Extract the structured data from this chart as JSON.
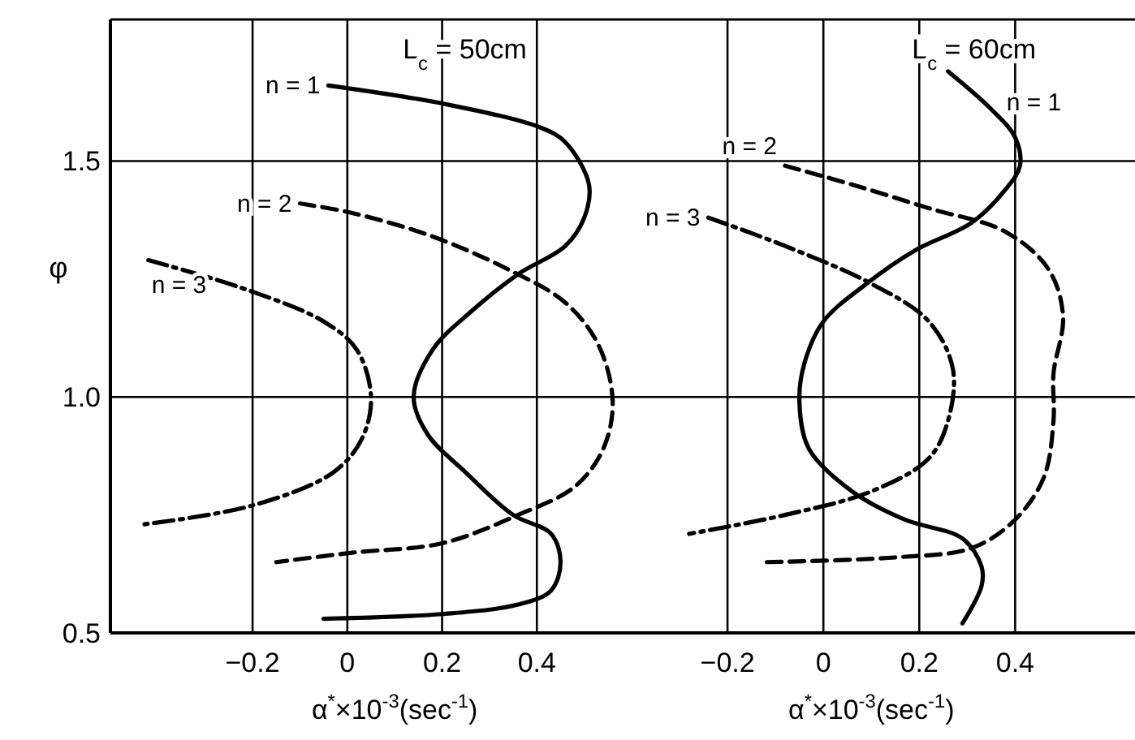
{
  "chart_data": [
    {
      "type": "line",
      "xlabel": "α$^{*}$×10$^{-3}$(sec$^{-1}$)",
      "ylabel": "φ",
      "annotations": [
        "L$_{c}$ = 50cm"
      ],
      "xlim": [
        -0.5,
        0.6
      ],
      "ylim": [
        0.5,
        1.8
      ],
      "xticks": [
        -0.2,
        0,
        0.2,
        0.4
      ],
      "yticks": [
        0.5,
        {
          "value": 1,
          "label": "1.0"
        },
        1.5
      ],
      "grid": true,
      "legend": false,
      "series": [
        {
          "name": "n = 1",
          "color": "#000000",
          "line_style": "solid",
          "x": [
            -0.04,
            0.21,
            0.41,
            0.46,
            0.51,
            0.5,
            0.46,
            0.36,
            0.26,
            0.18,
            0.14,
            0.17,
            0.25,
            0.35,
            0.43,
            0.45,
            0.43,
            0.36,
            0.2,
            -0.05
          ],
          "values": [
            1.66,
            1.62,
            1.57,
            1.54,
            1.45,
            1.38,
            1.32,
            1.26,
            1.18,
            1.1,
            1.0,
            0.92,
            0.84,
            0.75,
            0.71,
            0.65,
            0.59,
            0.56,
            0.54,
            0.53
          ]
        },
        {
          "name": "n = 2",
          "color": "#000000",
          "line_style": "dashed",
          "x": [
            -0.1,
            0.01,
            0.18,
            0.34,
            0.46,
            0.53,
            0.56,
            0.54,
            0.48,
            0.36,
            0.2,
            0.01,
            -0.15
          ],
          "values": [
            1.41,
            1.39,
            1.34,
            1.27,
            1.2,
            1.11,
            0.99,
            0.89,
            0.81,
            0.75,
            0.69,
            0.67,
            0.65
          ]
        },
        {
          "name": "n = 3",
          "color": "#000000",
          "line_style": "dashdot",
          "x": [
            -0.42,
            -0.22,
            -0.05,
            0.02,
            0.05,
            0.03,
            -0.03,
            -0.2,
            -0.43
          ],
          "values": [
            1.29,
            1.23,
            1.16,
            1.1,
            1.0,
            0.91,
            0.84,
            0.77,
            0.73
          ]
        }
      ]
    },
    {
      "type": "line",
      "xlabel": "α$^{*}$×10$^{-3}$(sec$^{-1}$)",
      "annotations": [
        "L$_{c}$ = 60cm"
      ],
      "xlim": [
        -0.4,
        0.65
      ],
      "ylim": [
        0.5,
        1.8
      ],
      "xticks": [
        -0.2,
        0,
        0.2,
        0.4
      ],
      "yticks": [
        0.5,
        1,
        1.5
      ],
      "tick_labels": "x",
      "grid": true,
      "legend": false,
      "series": [
        {
          "name": "n = 1",
          "color": "#000000",
          "line_style": "solid",
          "x": [
            0.26,
            0.35,
            0.4,
            0.41,
            0.38,
            0.31,
            0.19,
            0.09,
            0.0,
            -0.04,
            -0.05,
            -0.03,
            0.06,
            0.17,
            0.29,
            0.33,
            0.33,
            0.29
          ],
          "values": [
            1.69,
            1.61,
            1.55,
            1.49,
            1.44,
            1.37,
            1.31,
            1.24,
            1.16,
            1.07,
            0.99,
            0.89,
            0.8,
            0.74,
            0.7,
            0.64,
            0.6,
            0.52
          ]
        },
        {
          "name": "n = 2",
          "color": "#000000",
          "line_style": "dashed",
          "x": [
            -0.08,
            0.06,
            0.22,
            0.38,
            0.47,
            0.5,
            0.48,
            0.48,
            0.46,
            0.4,
            0.31,
            0.15,
            -0.12
          ],
          "values": [
            1.49,
            1.45,
            1.4,
            1.35,
            1.27,
            1.17,
            1.05,
            0.95,
            0.83,
            0.74,
            0.68,
            0.66,
            0.65
          ]
        },
        {
          "name": "n = 3",
          "color": "#000000",
          "line_style": "dashdot",
          "x": [
            -0.24,
            -0.08,
            0.1,
            0.22,
            0.27,
            0.26,
            0.22,
            0.1,
            -0.08,
            -0.28
          ],
          "values": [
            1.38,
            1.32,
            1.24,
            1.16,
            1.06,
            0.95,
            0.87,
            0.8,
            0.75,
            0.71
          ]
        }
      ]
    }
  ]
}
